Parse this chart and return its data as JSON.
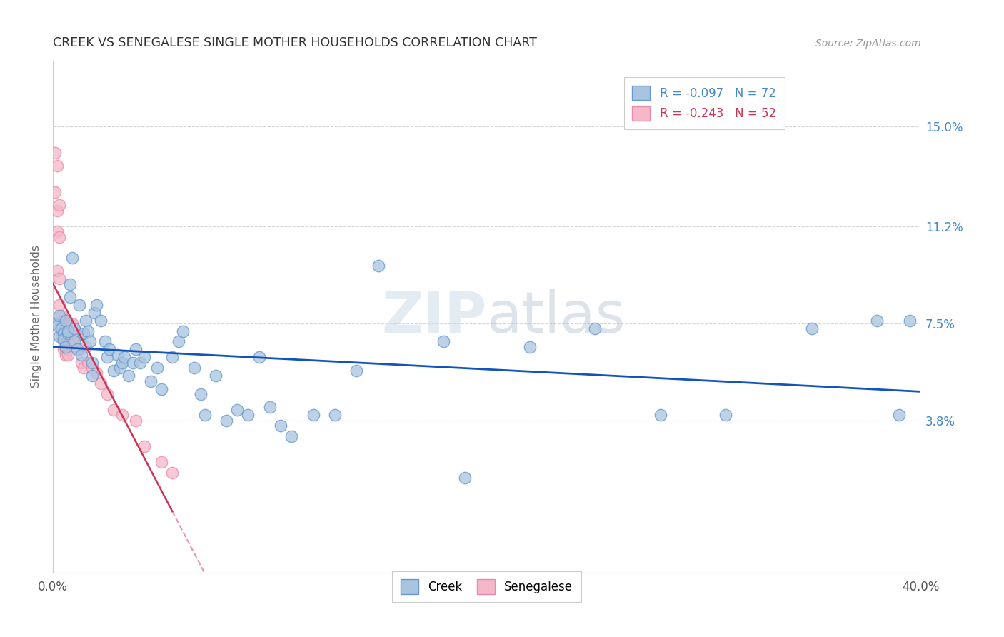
{
  "title": "CREEK VS SENEGALESE SINGLE MOTHER HOUSEHOLDS CORRELATION CHART",
  "source": "Source: ZipAtlas.com",
  "ylabel": "Single Mother Households",
  "y_tick_labels": [
    "3.8%",
    "7.5%",
    "11.2%",
    "15.0%"
  ],
  "y_tick_values": [
    0.038,
    0.075,
    0.112,
    0.15
  ],
  "xmin": 0.0,
  "xmax": 0.4,
  "ymin": -0.02,
  "ymax": 0.175,
  "creek_R": -0.097,
  "creek_N": 72,
  "senegalese_R": -0.243,
  "senegalese_N": 52,
  "creek_color": "#a8c4e0",
  "senegalese_color": "#f4b8c8",
  "creek_edge_color": "#6699cc",
  "senegalese_edge_color": "#ee88aa",
  "creek_line_color": "#1155bb",
  "senegalese_line_color": "#cc3355",
  "watermark_text": "ZIPatlas",
  "creek_x": [
    0.001,
    0.002,
    0.003,
    0.003,
    0.004,
    0.005,
    0.005,
    0.006,
    0.006,
    0.007,
    0.007,
    0.008,
    0.008,
    0.009,
    0.01,
    0.01,
    0.011,
    0.012,
    0.013,
    0.014,
    0.015,
    0.016,
    0.017,
    0.018,
    0.018,
    0.019,
    0.02,
    0.022,
    0.024,
    0.025,
    0.026,
    0.028,
    0.03,
    0.031,
    0.032,
    0.033,
    0.035,
    0.037,
    0.038,
    0.04,
    0.042,
    0.045,
    0.048,
    0.05,
    0.055,
    0.058,
    0.06,
    0.065,
    0.068,
    0.07,
    0.075,
    0.08,
    0.085,
    0.09,
    0.095,
    0.1,
    0.105,
    0.11,
    0.12,
    0.13,
    0.14,
    0.15,
    0.18,
    0.19,
    0.22,
    0.25,
    0.28,
    0.31,
    0.35,
    0.38,
    0.39,
    0.395
  ],
  "creek_y": [
    0.075,
    0.074,
    0.078,
    0.07,
    0.073,
    0.071,
    0.069,
    0.076,
    0.066,
    0.071,
    0.072,
    0.09,
    0.085,
    0.1,
    0.073,
    0.068,
    0.065,
    0.082,
    0.063,
    0.071,
    0.076,
    0.072,
    0.068,
    0.06,
    0.055,
    0.079,
    0.082,
    0.076,
    0.068,
    0.062,
    0.065,
    0.057,
    0.063,
    0.058,
    0.06,
    0.062,
    0.055,
    0.06,
    0.065,
    0.06,
    0.062,
    0.053,
    0.058,
    0.05,
    0.062,
    0.068,
    0.072,
    0.058,
    0.048,
    0.04,
    0.055,
    0.038,
    0.042,
    0.04,
    0.062,
    0.043,
    0.036,
    0.032,
    0.04,
    0.04,
    0.057,
    0.097,
    0.068,
    0.016,
    0.066,
    0.073,
    0.04,
    0.04,
    0.073,
    0.076,
    0.04,
    0.076
  ],
  "senegalese_x": [
    0.001,
    0.001,
    0.002,
    0.002,
    0.002,
    0.002,
    0.003,
    0.003,
    0.003,
    0.003,
    0.004,
    0.004,
    0.004,
    0.004,
    0.005,
    0.005,
    0.005,
    0.005,
    0.006,
    0.006,
    0.006,
    0.006,
    0.006,
    0.007,
    0.007,
    0.007,
    0.007,
    0.007,
    0.007,
    0.008,
    0.008,
    0.008,
    0.009,
    0.009,
    0.009,
    0.01,
    0.011,
    0.012,
    0.013,
    0.014,
    0.015,
    0.016,
    0.018,
    0.02,
    0.022,
    0.025,
    0.028,
    0.032,
    0.038,
    0.042,
    0.05,
    0.055
  ],
  "senegalese_y": [
    0.14,
    0.125,
    0.135,
    0.118,
    0.11,
    0.095,
    0.12,
    0.108,
    0.092,
    0.082,
    0.078,
    0.073,
    0.075,
    0.07,
    0.076,
    0.072,
    0.068,
    0.065,
    0.074,
    0.07,
    0.068,
    0.065,
    0.063,
    0.075,
    0.072,
    0.07,
    0.068,
    0.065,
    0.063,
    0.075,
    0.072,
    0.068,
    0.075,
    0.072,
    0.068,
    0.073,
    0.07,
    0.065,
    0.06,
    0.058,
    0.066,
    0.06,
    0.058,
    0.056,
    0.052,
    0.048,
    0.042,
    0.04,
    0.038,
    0.028,
    0.022,
    0.018
  ]
}
